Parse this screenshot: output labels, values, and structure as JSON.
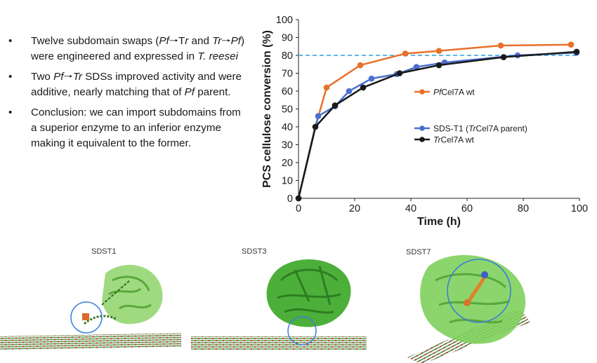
{
  "bullets": [
    {
      "marker": "•",
      "html": "Twelve subdomain swaps (<i>Pf</i>&#129042;T<i>r</i> and <i>Tr</i>&#129042;<i>Pf</i>) were engineered and expressed in <i>T. reesei</i>"
    },
    {
      "marker": "•",
      "html": "Two <i>Pf</i>&#129042;<i>Tr</i> SDSs improved activity and were additive, nearly matching that of <i>Pf</i> parent."
    },
    {
      "marker": "•",
      "html": "Conclusion: we can import subdomains from a superior enzyme to an inferior enzyme making it equivalent to the former."
    }
  ],
  "chart_data": {
    "type": "line",
    "xlabel": "Time (h)",
    "ylabel": "PCS cellulose conversion (%)",
    "xlim": [
      0,
      100
    ],
    "ylim": [
      0,
      100
    ],
    "xticks": [
      "0",
      "20",
      "40",
      "60",
      "80",
      "100"
    ],
    "yticks": [
      "0",
      "10",
      "20",
      "30",
      "40",
      "50",
      "60",
      "70",
      "80",
      "90",
      "100"
    ],
    "grid": false,
    "reference_line": {
      "y": 80,
      "style": "dashed",
      "color": "#5bb8e8"
    },
    "series": [
      {
        "name": "PfCel7A wt",
        "name_parts": [
          {
            "t": "Pf",
            "i": true
          },
          {
            "t": "Cel7A wt",
            "i": false
          }
        ],
        "color": "#e8702a",
        "x": [
          0,
          6,
          10,
          22,
          38,
          50,
          72,
          97
        ],
        "y": [
          0,
          40,
          62,
          74.5,
          81,
          82.5,
          85.5,
          86
        ]
      },
      {
        "name": "SDS-T1 (TrCel7A parent)",
        "name_parts": [
          {
            "t": "SDS-T1 (",
            "i": false
          },
          {
            "t": "Tr",
            "i": true
          },
          {
            "t": "Cel7A parent)",
            "i": false
          }
        ],
        "color": "#4a6fd0",
        "x": [
          0,
          7,
          13,
          18,
          26,
          35,
          42,
          52,
          78,
          99
        ],
        "y": [
          0,
          46,
          51.5,
          60,
          67,
          69.5,
          73.5,
          76,
          80,
          81.5
        ]
      },
      {
        "name": "TrCel7A wt",
        "name_parts": [
          {
            "t": "Tr",
            "i": true
          },
          {
            "t": "Cel7A wt",
            "i": false
          }
        ],
        "color": "#1a1a1a",
        "x": [
          0,
          6,
          13,
          23,
          36,
          50,
          73,
          99
        ],
        "y": [
          0,
          40,
          52,
          62,
          70,
          74.5,
          79,
          82
        ]
      }
    ]
  },
  "structures": [
    {
      "label": "SDST1"
    },
    {
      "label": "SDST3"
    },
    {
      "label": "SDST7"
    }
  ],
  "colors": {
    "protein_green": "#6cc24a",
    "protein_dark": "#2f8f2f",
    "circle_blue": "#3a7fd8"
  }
}
